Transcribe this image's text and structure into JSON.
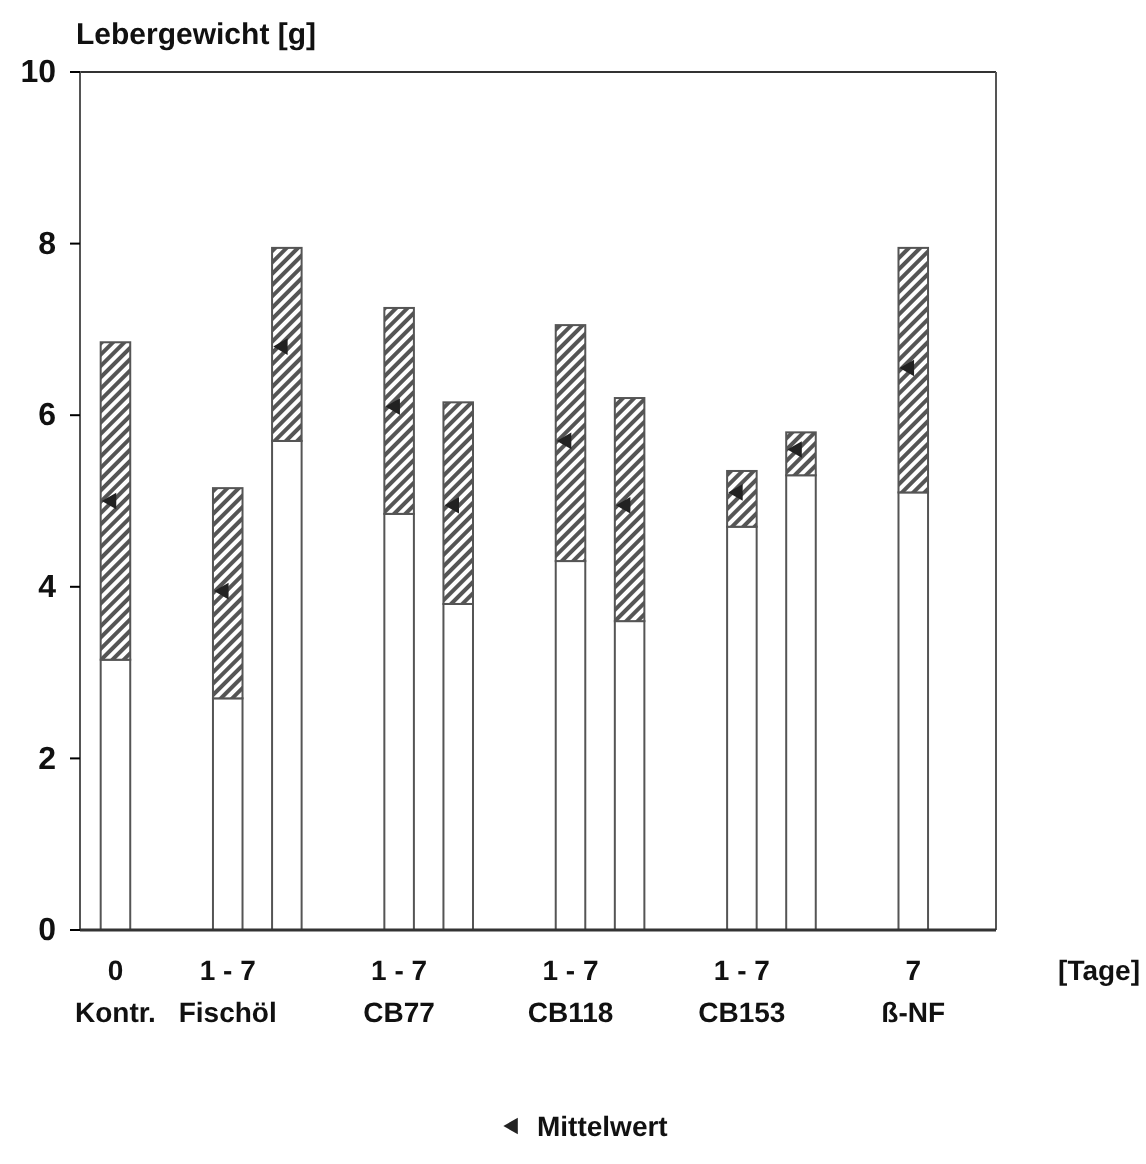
{
  "chart_data": {
    "type": "bar",
    "stacked": true,
    "ylabel": "Lebergewicht [g]",
    "xlabel": "[Tage]",
    "categories": [
      "0\nKontr.",
      "1 - 7\nFischöl",
      null,
      "1 - 7\nCB77",
      null,
      "1 - 7\nCB118",
      null,
      "1 - 7\nCB153",
      null,
      "7\nß-NF"
    ],
    "ylim": [
      0,
      10
    ],
    "yticks": [
      0,
      2,
      4,
      6,
      8,
      10
    ],
    "grid": false,
    "legend": "bottom",
    "series": [
      {
        "color": "#ffffff",
        "values": [
          3.15,
          2.7,
          5.7,
          4.85,
          3.8,
          4.3,
          3.6,
          4.7,
          5.3,
          5.1
        ]
      },
      {
        "color": "#555555",
        "values": [
          3.7,
          2.45,
          2.25,
          2.4,
          2.35,
          2.75,
          2.6,
          0.65,
          0.5,
          2.85
        ]
      },
      {
        "type": "scatter",
        "name": "Mittelwert",
        "color": "#222222",
        "marker": "triangle",
        "values": [
          5.0,
          3.95,
          6.8,
          6.1,
          4.95,
          5.7,
          4.95,
          5.1,
          5.6,
          6.55
        ]
      }
    ]
  }
}
